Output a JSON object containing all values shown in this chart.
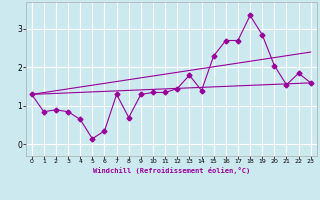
{
  "title": "",
  "xlabel": "Windchill (Refroidissement éolien,°C)",
  "ylabel": "",
  "xlim": [
    -0.5,
    23.5
  ],
  "ylim": [
    -0.3,
    3.7
  ],
  "yticks": [
    0,
    1,
    2,
    3
  ],
  "xticks": [
    0,
    1,
    2,
    3,
    4,
    5,
    6,
    7,
    8,
    9,
    10,
    11,
    12,
    13,
    14,
    15,
    16,
    17,
    18,
    19,
    20,
    21,
    22,
    23
  ],
  "background_color": "#cde9f0",
  "grid_color": "#ffffff",
  "line_color": "#990099",
  "series1_x": [
    0,
    1,
    2,
    3,
    4,
    5,
    6,
    7,
    8,
    9,
    10,
    11,
    12,
    13,
    14,
    15,
    16,
    17,
    18,
    19,
    20,
    21,
    22,
    23
  ],
  "series1_y": [
    1.3,
    0.85,
    0.9,
    0.85,
    0.65,
    0.15,
    0.35,
    1.3,
    0.7,
    1.3,
    1.35,
    1.35,
    1.45,
    1.8,
    1.4,
    2.3,
    2.7,
    2.7,
    3.35,
    2.85,
    2.05,
    1.55,
    1.85,
    1.6
  ],
  "series2_x": [
    0,
    23
  ],
  "series2_y": [
    1.3,
    1.6
  ],
  "series3_x": [
    0,
    23
  ],
  "series3_y": [
    1.3,
    2.4
  ],
  "marker": "D",
  "markersize": 2.5,
  "linewidth": 0.8
}
